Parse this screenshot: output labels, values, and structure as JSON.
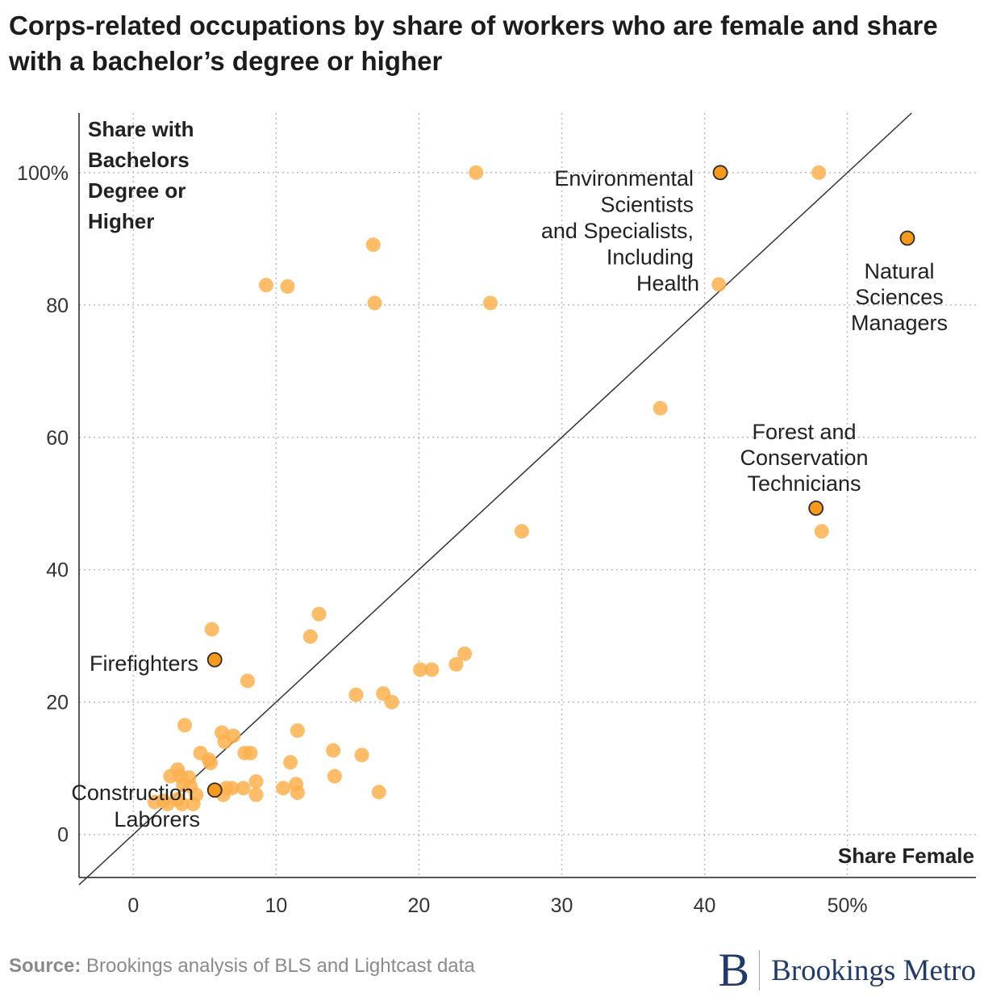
{
  "title": "Corps-related occupations by share of workers who are female and share with a bachelor’s degree or higher",
  "source_label": "Source:",
  "source_text": "Brookings analysis of BLS and Lightcast data",
  "brand": {
    "letter": "B",
    "name": "Brookings Metro"
  },
  "colors": {
    "point": "#fbb04e",
    "highlight": "#f7991c",
    "highlight_stroke": "#2a2a2a",
    "diagonal": "#333333",
    "grid": "#bbbbbb"
  },
  "chart_data": {
    "type": "scatter",
    "xlabel": "Share Female",
    "ylabel": "Share with Bachelors Degree or Higher",
    "ylabel_lines": [
      "Share with",
      "Bachelors",
      "Degree or",
      "Higher"
    ],
    "xlim": [
      -3.8,
      59
    ],
    "ylim": [
      -6.5,
      109
    ],
    "x_ticks": [
      0,
      10,
      20,
      30,
      40,
      50
    ],
    "x_tick_labels": [
      "0",
      "10",
      "20",
      "30",
      "40",
      "50%"
    ],
    "y_ticks": [
      0,
      20,
      40,
      60,
      80,
      100
    ],
    "y_tick_labels": [
      "0",
      "20",
      "40",
      "60",
      "80",
      "100%"
    ],
    "grid": true,
    "reference_line": "y = 2x",
    "highlighted": [
      {
        "label_lines": [
          "Environmental",
          "Scientists",
          "and Specialists,",
          "Including",
          "Health"
        ],
        "x": 41.1,
        "y": 100
      },
      {
        "label_lines": [
          "Natural",
          "Sciences",
          "Managers"
        ],
        "x": 54.2,
        "y": 90.1
      },
      {
        "label_lines": [
          "Forest and",
          "Conservation",
          "Technicians"
        ],
        "x": 47.8,
        "y": 49.3
      },
      {
        "label_lines": [
          "Firefighters"
        ],
        "x": 5.7,
        "y": 26.4
      },
      {
        "label_lines": [
          "Construction",
          "Laborers"
        ],
        "x": 5.7,
        "y": 6.7
      }
    ],
    "points": [
      {
        "x": 24.0,
        "y": 100
      },
      {
        "x": 48.0,
        "y": 100
      },
      {
        "x": 16.8,
        "y": 89.1
      },
      {
        "x": 9.3,
        "y": 83.0
      },
      {
        "x": 10.8,
        "y": 82.8
      },
      {
        "x": 16.9,
        "y": 80.3
      },
      {
        "x": 25.0,
        "y": 80.3
      },
      {
        "x": 41.0,
        "y": 83.1
      },
      {
        "x": 36.9,
        "y": 64.4
      },
      {
        "x": 27.2,
        "y": 45.8
      },
      {
        "x": 48.2,
        "y": 45.8
      },
      {
        "x": 5.5,
        "y": 31.0
      },
      {
        "x": 13.0,
        "y": 33.3
      },
      {
        "x": 12.4,
        "y": 29.9
      },
      {
        "x": 8.0,
        "y": 23.2
      },
      {
        "x": 23.2,
        "y": 27.3
      },
      {
        "x": 22.6,
        "y": 25.7
      },
      {
        "x": 20.9,
        "y": 24.9
      },
      {
        "x": 20.1,
        "y": 24.9
      },
      {
        "x": 15.6,
        "y": 21.1
      },
      {
        "x": 17.5,
        "y": 21.3
      },
      {
        "x": 18.1,
        "y": 20.0
      },
      {
        "x": 3.6,
        "y": 16.5
      },
      {
        "x": 11.5,
        "y": 15.7
      },
      {
        "x": 6.2,
        "y": 15.4
      },
      {
        "x": 7.0,
        "y": 14.9
      },
      {
        "x": 6.4,
        "y": 14.0
      },
      {
        "x": 14.0,
        "y": 12.7
      },
      {
        "x": 16.0,
        "y": 12.0
      },
      {
        "x": 7.8,
        "y": 12.3
      },
      {
        "x": 8.2,
        "y": 12.3
      },
      {
        "x": 4.7,
        "y": 12.3
      },
      {
        "x": 5.3,
        "y": 11.3
      },
      {
        "x": 5.4,
        "y": 10.8
      },
      {
        "x": 11.0,
        "y": 10.9
      },
      {
        "x": 3.1,
        "y": 9.8
      },
      {
        "x": 2.6,
        "y": 8.8
      },
      {
        "x": 3.3,
        "y": 8.8
      },
      {
        "x": 3.9,
        "y": 8.6
      },
      {
        "x": 14.1,
        "y": 8.8
      },
      {
        "x": 8.6,
        "y": 8.0
      },
      {
        "x": 11.4,
        "y": 7.6
      },
      {
        "x": 3.5,
        "y": 7.5
      },
      {
        "x": 4.0,
        "y": 7.3
      },
      {
        "x": 10.5,
        "y": 7.0
      },
      {
        "x": 7.7,
        "y": 7.0
      },
      {
        "x": 6.5,
        "y": 7.0
      },
      {
        "x": 6.9,
        "y": 7.0
      },
      {
        "x": 11.5,
        "y": 6.3
      },
      {
        "x": 17.2,
        "y": 6.4
      },
      {
        "x": 8.6,
        "y": 6.0
      },
      {
        "x": 6.3,
        "y": 6.0
      },
      {
        "x": 4.4,
        "y": 6.0
      },
      {
        "x": 3.1,
        "y": 5.3
      },
      {
        "x": 2.1,
        "y": 5.1
      },
      {
        "x": 1.5,
        "y": 4.9
      },
      {
        "x": 2.4,
        "y": 4.6
      },
      {
        "x": 3.4,
        "y": 4.6
      },
      {
        "x": 4.2,
        "y": 4.6
      }
    ]
  }
}
